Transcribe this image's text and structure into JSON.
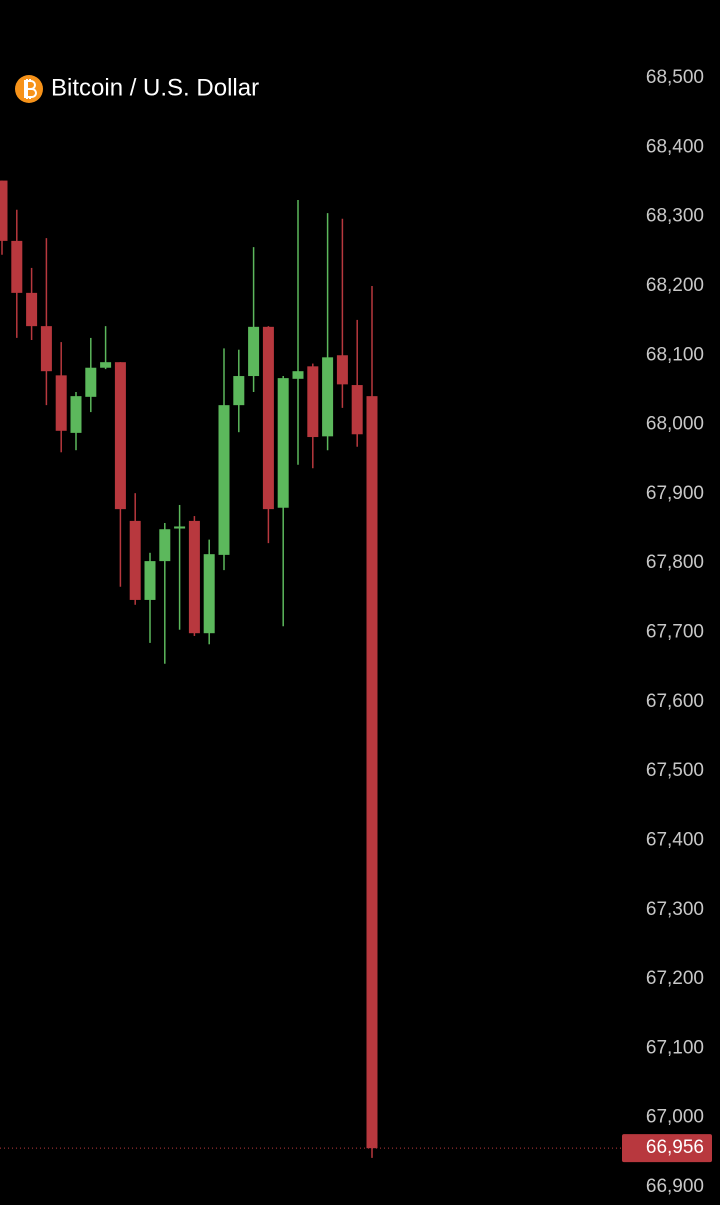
{
  "chart_data": {
    "type": "candlestick",
    "title": "Bitcoin / U.S. Dollar",
    "open": [
      68352,
      68265,
      68190,
      68142,
      68071,
      67988,
      68040,
      68082,
      68090,
      67861,
      67747,
      67803,
      67850,
      67861,
      67699,
      67812,
      68028,
      68070,
      68141,
      67880,
      68066,
      68084,
      67983,
      68100,
      68057,
      68041
    ],
    "high": [
      68352,
      68310,
      68226,
      68269,
      68119,
      68047,
      68125,
      68142,
      68090,
      67901,
      67815,
      67858,
      67884,
      67868,
      67834,
      68110,
      68108,
      68256,
      68142,
      68070,
      68324,
      68088,
      68305,
      68297,
      68151,
      68200
    ],
    "low": [
      68245,
      68125,
      68122,
      68028,
      67960,
      67963,
      68018,
      68080,
      67766,
      67740,
      67685,
      67655,
      67704,
      67695,
      67683,
      67790,
      67989,
      68047,
      67829,
      67709,
      67942,
      67937,
      67963,
      68024,
      67968,
      66942
    ],
    "close": [
      68265,
      68190,
      68142,
      68077,
      67991,
      68041,
      68082,
      68090,
      67878,
      67747,
      67803,
      67849,
      67853,
      67699,
      67813,
      68028,
      68070,
      68141,
      67878,
      68067,
      68077,
      67982,
      68097,
      68058,
      67986,
      66956
    ],
    "up_color": "#5cb85c",
    "down_color": "#b8383e",
    "last_price": {
      "value": 66956,
      "label": "66,956"
    },
    "ylim": [
      66900,
      68500
    ],
    "yticks": [
      {
        "value": 66900,
        "label": "66,900"
      },
      {
        "value": 67000,
        "label": "67,000"
      },
      {
        "value": 67100,
        "label": "67,100"
      },
      {
        "value": 67200,
        "label": "67,200"
      },
      {
        "value": 67300,
        "label": "67,300"
      },
      {
        "value": 67400,
        "label": "67,400"
      },
      {
        "value": 67500,
        "label": "67,500"
      },
      {
        "value": 67600,
        "label": "67,600"
      },
      {
        "value": 67700,
        "label": "67,700"
      },
      {
        "value": 67800,
        "label": "67,800"
      },
      {
        "value": 67900,
        "label": "67,900"
      },
      {
        "value": 68000,
        "label": "68,000"
      },
      {
        "value": 68100,
        "label": "68,100"
      },
      {
        "value": 68200,
        "label": "68,200"
      },
      {
        "value": 68300,
        "label": "68,300"
      },
      {
        "value": 68400,
        "label": "68,400"
      },
      {
        "value": 68500,
        "label": "68,500"
      }
    ]
  }
}
